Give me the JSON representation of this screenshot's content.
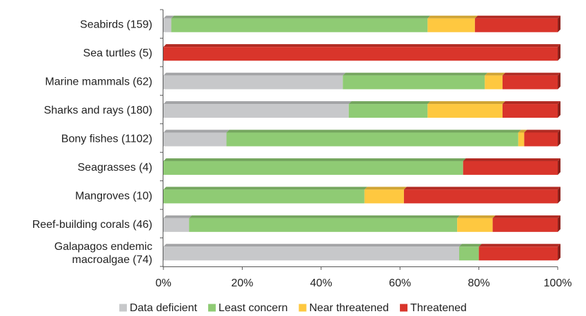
{
  "chart_data": {
    "type": "bar",
    "orientation": "horizontal",
    "stacked": true,
    "percent": true,
    "categories": [
      "Seabirds (159)",
      "Sea turtles (5)",
      "Marine mammals (62)",
      "Sharks and rays (180)",
      "Bony fishes (1102)",
      "Seagrasses (4)",
      "Mangroves (10)",
      "Reef-building corals (46)",
      [
        "Galapagos endemic",
        "macroalgae (74)"
      ]
    ],
    "series": [
      {
        "name": "Data deficient",
        "color": "#c7c8ca",
        "values": [
          2,
          0,
          45.5,
          47,
          16,
          0,
          0,
          6.5,
          75
        ]
      },
      {
        "name": "Least concern",
        "color": "#8fcb74",
        "values": [
          65,
          0,
          36,
          20,
          74,
          76,
          51,
          68,
          5
        ]
      },
      {
        "name": "Near threatened",
        "color": "#fec840",
        "values": [
          12,
          0,
          4.5,
          19,
          1.5,
          0,
          10,
          9,
          0
        ]
      },
      {
        "name": "Threatened",
        "color": "#d9352b",
        "values": [
          21,
          100,
          14,
          14,
          8.5,
          24,
          39,
          16.5,
          20
        ]
      }
    ],
    "xticks": [
      "0%",
      "20%",
      "40%",
      "60%",
      "80%",
      "100%"
    ],
    "xlim": [
      0,
      100
    ],
    "legend_position": "bottom",
    "grid": false
  }
}
